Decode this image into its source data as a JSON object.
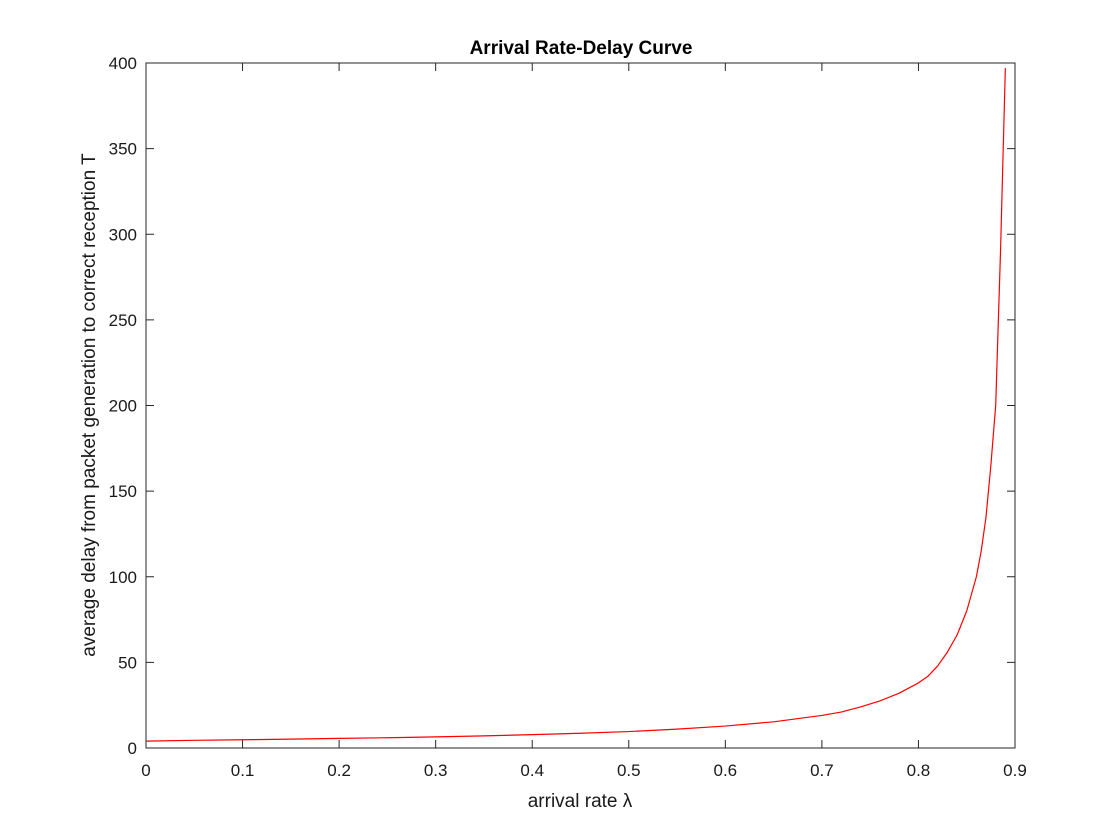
{
  "chart_data": {
    "type": "line",
    "title": "Arrival Rate-Delay Curve",
    "xlabel": "arrival rate λ",
    "ylabel": "average delay from packet generation to correct reception T",
    "xlim": [
      0,
      0.9
    ],
    "ylim": [
      0,
      400
    ],
    "xticks": [
      "0",
      "0.1",
      "0.2",
      "0.3",
      "0.4",
      "0.5",
      "0.6",
      "0.7",
      "0.8",
      "0.9"
    ],
    "yticks": [
      "0",
      "50",
      "100",
      "150",
      "200",
      "250",
      "300",
      "350",
      "400"
    ],
    "grid": false,
    "box": true,
    "series": [
      {
        "color": "#ff0000",
        "x": [
          0,
          0.05,
          0.1,
          0.15,
          0.2,
          0.25,
          0.3,
          0.35,
          0.4,
          0.45,
          0.5,
          0.55,
          0.6,
          0.65,
          0.7,
          0.72,
          0.74,
          0.76,
          0.78,
          0.8,
          0.81,
          0.82,
          0.83,
          0.84,
          0.85,
          0.86,
          0.865,
          0.87,
          0.875,
          0.88,
          0.885,
          0.89
        ],
        "y": [
          4,
          4.5,
          4.8,
          5.2,
          5.6,
          6.0,
          6.5,
          7.1,
          7.8,
          8.6,
          9.6,
          11,
          12.8,
          15.3,
          19,
          21,
          24,
          27.5,
          32,
          38,
          42,
          48,
          56,
          66,
          80,
          100,
          115,
          135,
          165,
          200,
          290,
          397
        ]
      }
    ]
  }
}
